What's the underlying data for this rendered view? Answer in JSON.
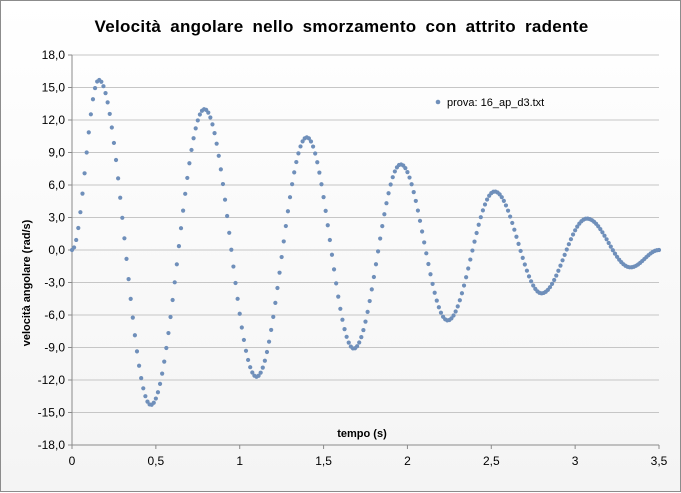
{
  "chart_data": {
    "type": "scatter",
    "title": "Velocità  angolare  nello  smorzamento  con  attrito  radente",
    "xlabel": "tempo (s)",
    "ylabel": "velocità angolare (rad/s)",
    "xlim": [
      0,
      3.5
    ],
    "ylim": [
      -18,
      18
    ],
    "x_ticks": [
      "0",
      "0,5",
      "1",
      "1,5",
      "2",
      "2,5",
      "3",
      "3,5"
    ],
    "y_ticks": [
      "18,0",
      "15,0",
      "12,0",
      "9,0",
      "6,0",
      "3,0",
      "0,0",
      "-3,0",
      "-6,0",
      "-9,0",
      "-12,0",
      "-15,0",
      "-18,0"
    ],
    "grid": true,
    "legend_position": "top-right",
    "series_color": "#6f8fba",
    "sampling_interval": 0.0125,
    "series": [
      {
        "name": "prova: 16_ap_d3.txt",
        "extrema": [
          {
            "x": 0.0,
            "y": 0.0
          },
          {
            "x": 0.16,
            "y": 15.7
          },
          {
            "x": 0.47,
            "y": -14.3
          },
          {
            "x": 0.79,
            "y": 13.0
          },
          {
            "x": 1.1,
            "y": -11.7
          },
          {
            "x": 1.4,
            "y": 10.4
          },
          {
            "x": 1.68,
            "y": -9.1
          },
          {
            "x": 1.96,
            "y": 7.9
          },
          {
            "x": 2.24,
            "y": -6.5
          },
          {
            "x": 2.52,
            "y": 5.4
          },
          {
            "x": 2.8,
            "y": -4.0
          },
          {
            "x": 3.07,
            "y": 2.9
          },
          {
            "x": 3.33,
            "y": -1.6
          },
          {
            "x": 3.5,
            "y": 0.0
          }
        ]
      }
    ]
  }
}
